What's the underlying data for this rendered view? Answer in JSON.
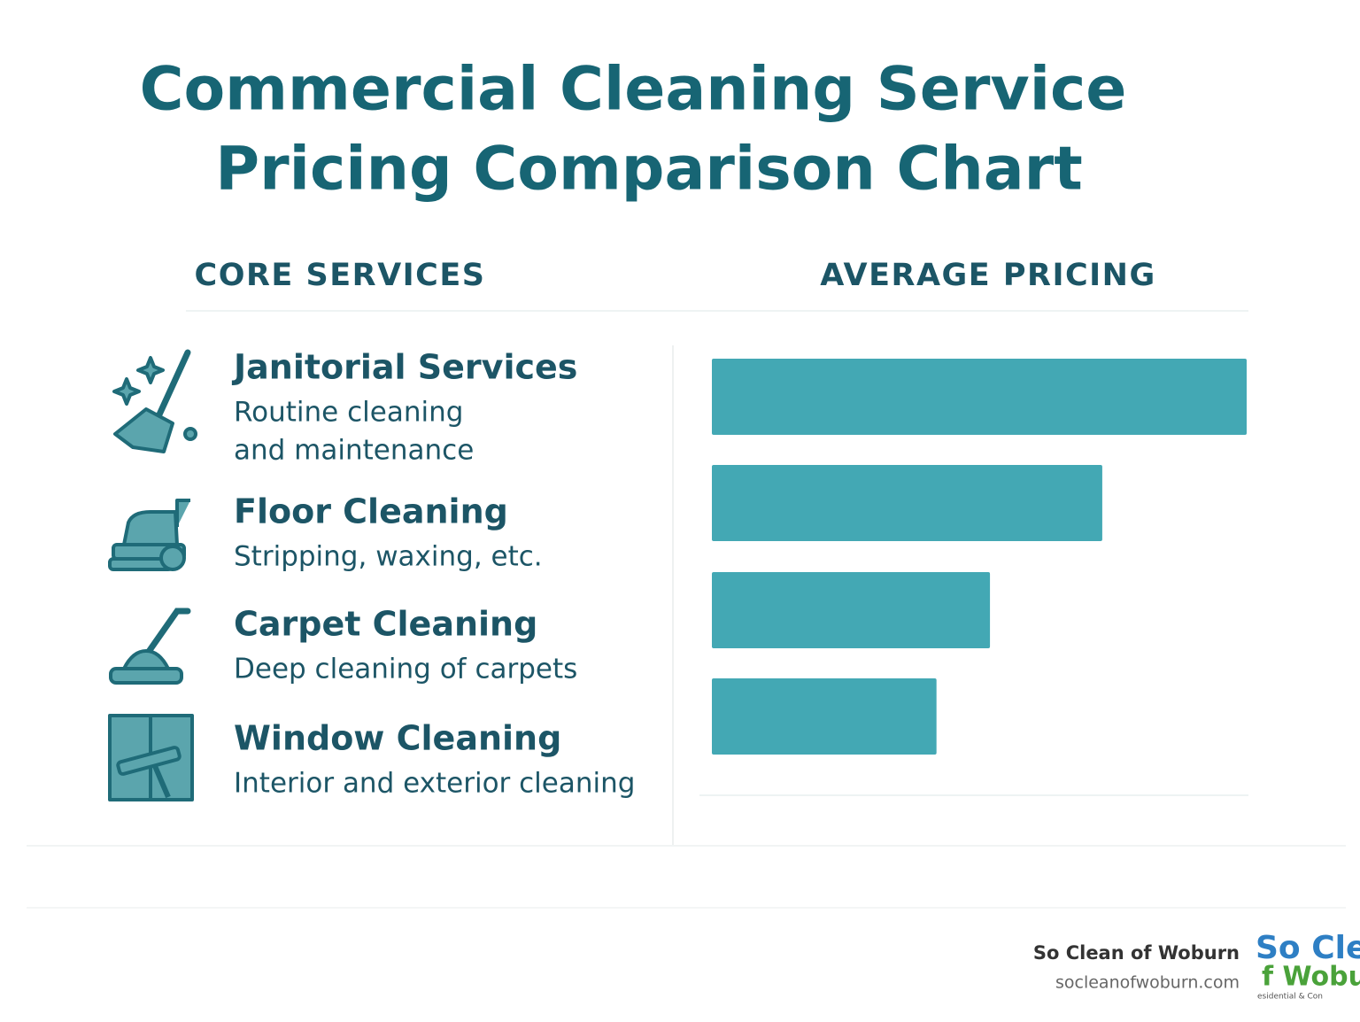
{
  "chart_data": {
    "type": "bar",
    "orientation": "horizontal",
    "title": [
      "Commercial Cleaning Service",
      "Pricing Comparison Chart"
    ],
    "left_header": "CORE SERVICES",
    "right_header": "AVERAGE PRICING",
    "categories": [
      "Janitorial Services",
      "Floor Cleaning",
      "Carpet Cleaning",
      "Window Cleaning"
    ],
    "descriptions": [
      [
        "Routine cleaning",
        "and maintenance"
      ],
      [
        "Stripping, waxing, etc."
      ],
      [
        "Deep cleaning of carpets"
      ],
      [
        "Interior and exterior cleaning"
      ]
    ],
    "values": [
      100,
      73,
      52,
      42
    ],
    "xlim": [
      0,
      100
    ],
    "color": "#43a8b4",
    "footer": {
      "brand": "So Clean of Woburn",
      "url": "socleanofwoburn.com",
      "logo": [
        "So Cle",
        "f Wobu",
        "esidential & Con"
      ]
    }
  }
}
